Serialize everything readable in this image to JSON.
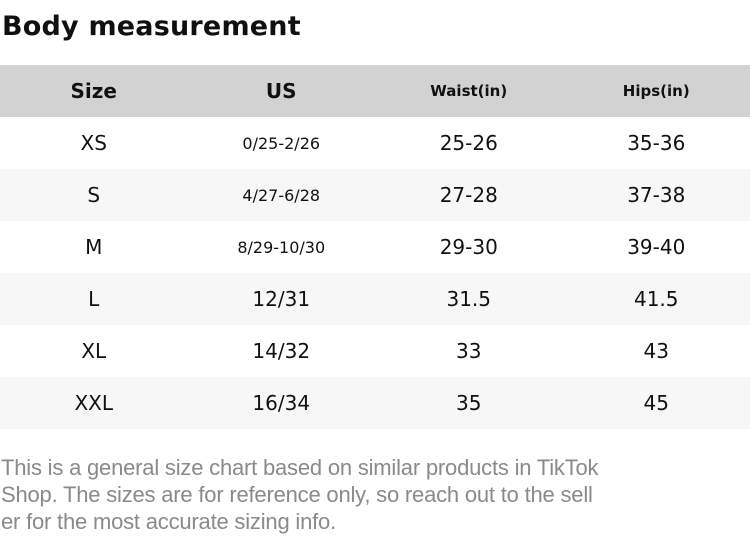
{
  "page": {
    "title": "Body measurement"
  },
  "table": {
    "columns": [
      "Size",
      "US",
      "Waist(in)",
      "Hips(in)"
    ],
    "rows": [
      {
        "size": "XS",
        "us": "0/25-2/26",
        "waist": "25-26",
        "hips": "35-36"
      },
      {
        "size": "S",
        "us": "4/27-6/28",
        "waist": "27-28",
        "hips": "37-38"
      },
      {
        "size": "M",
        "us": "8/29-10/30",
        "waist": "29-30",
        "hips": "39-40"
      },
      {
        "size": "L",
        "us": "12/31",
        "waist": "31.5",
        "hips": "41.5"
      },
      {
        "size": "XL",
        "us": "14/32",
        "waist": "33",
        "hips": "43"
      },
      {
        "size": "XXL",
        "us": "16/34",
        "waist": "35",
        "hips": "45"
      }
    ]
  },
  "footer": {
    "lines": [
      "This is a general size chart based on similar products in TikTok",
      "Shop. The sizes are for reference only, so reach out to the sell",
      "er for the most accurate sizing info."
    ]
  },
  "theme": {
    "header_bg": "#d2d2d2",
    "row_bg": "#ffffff",
    "row_alt_bg": "#f7f7f7",
    "footer_color": "#8a8a8a",
    "text_color": "#111111"
  }
}
